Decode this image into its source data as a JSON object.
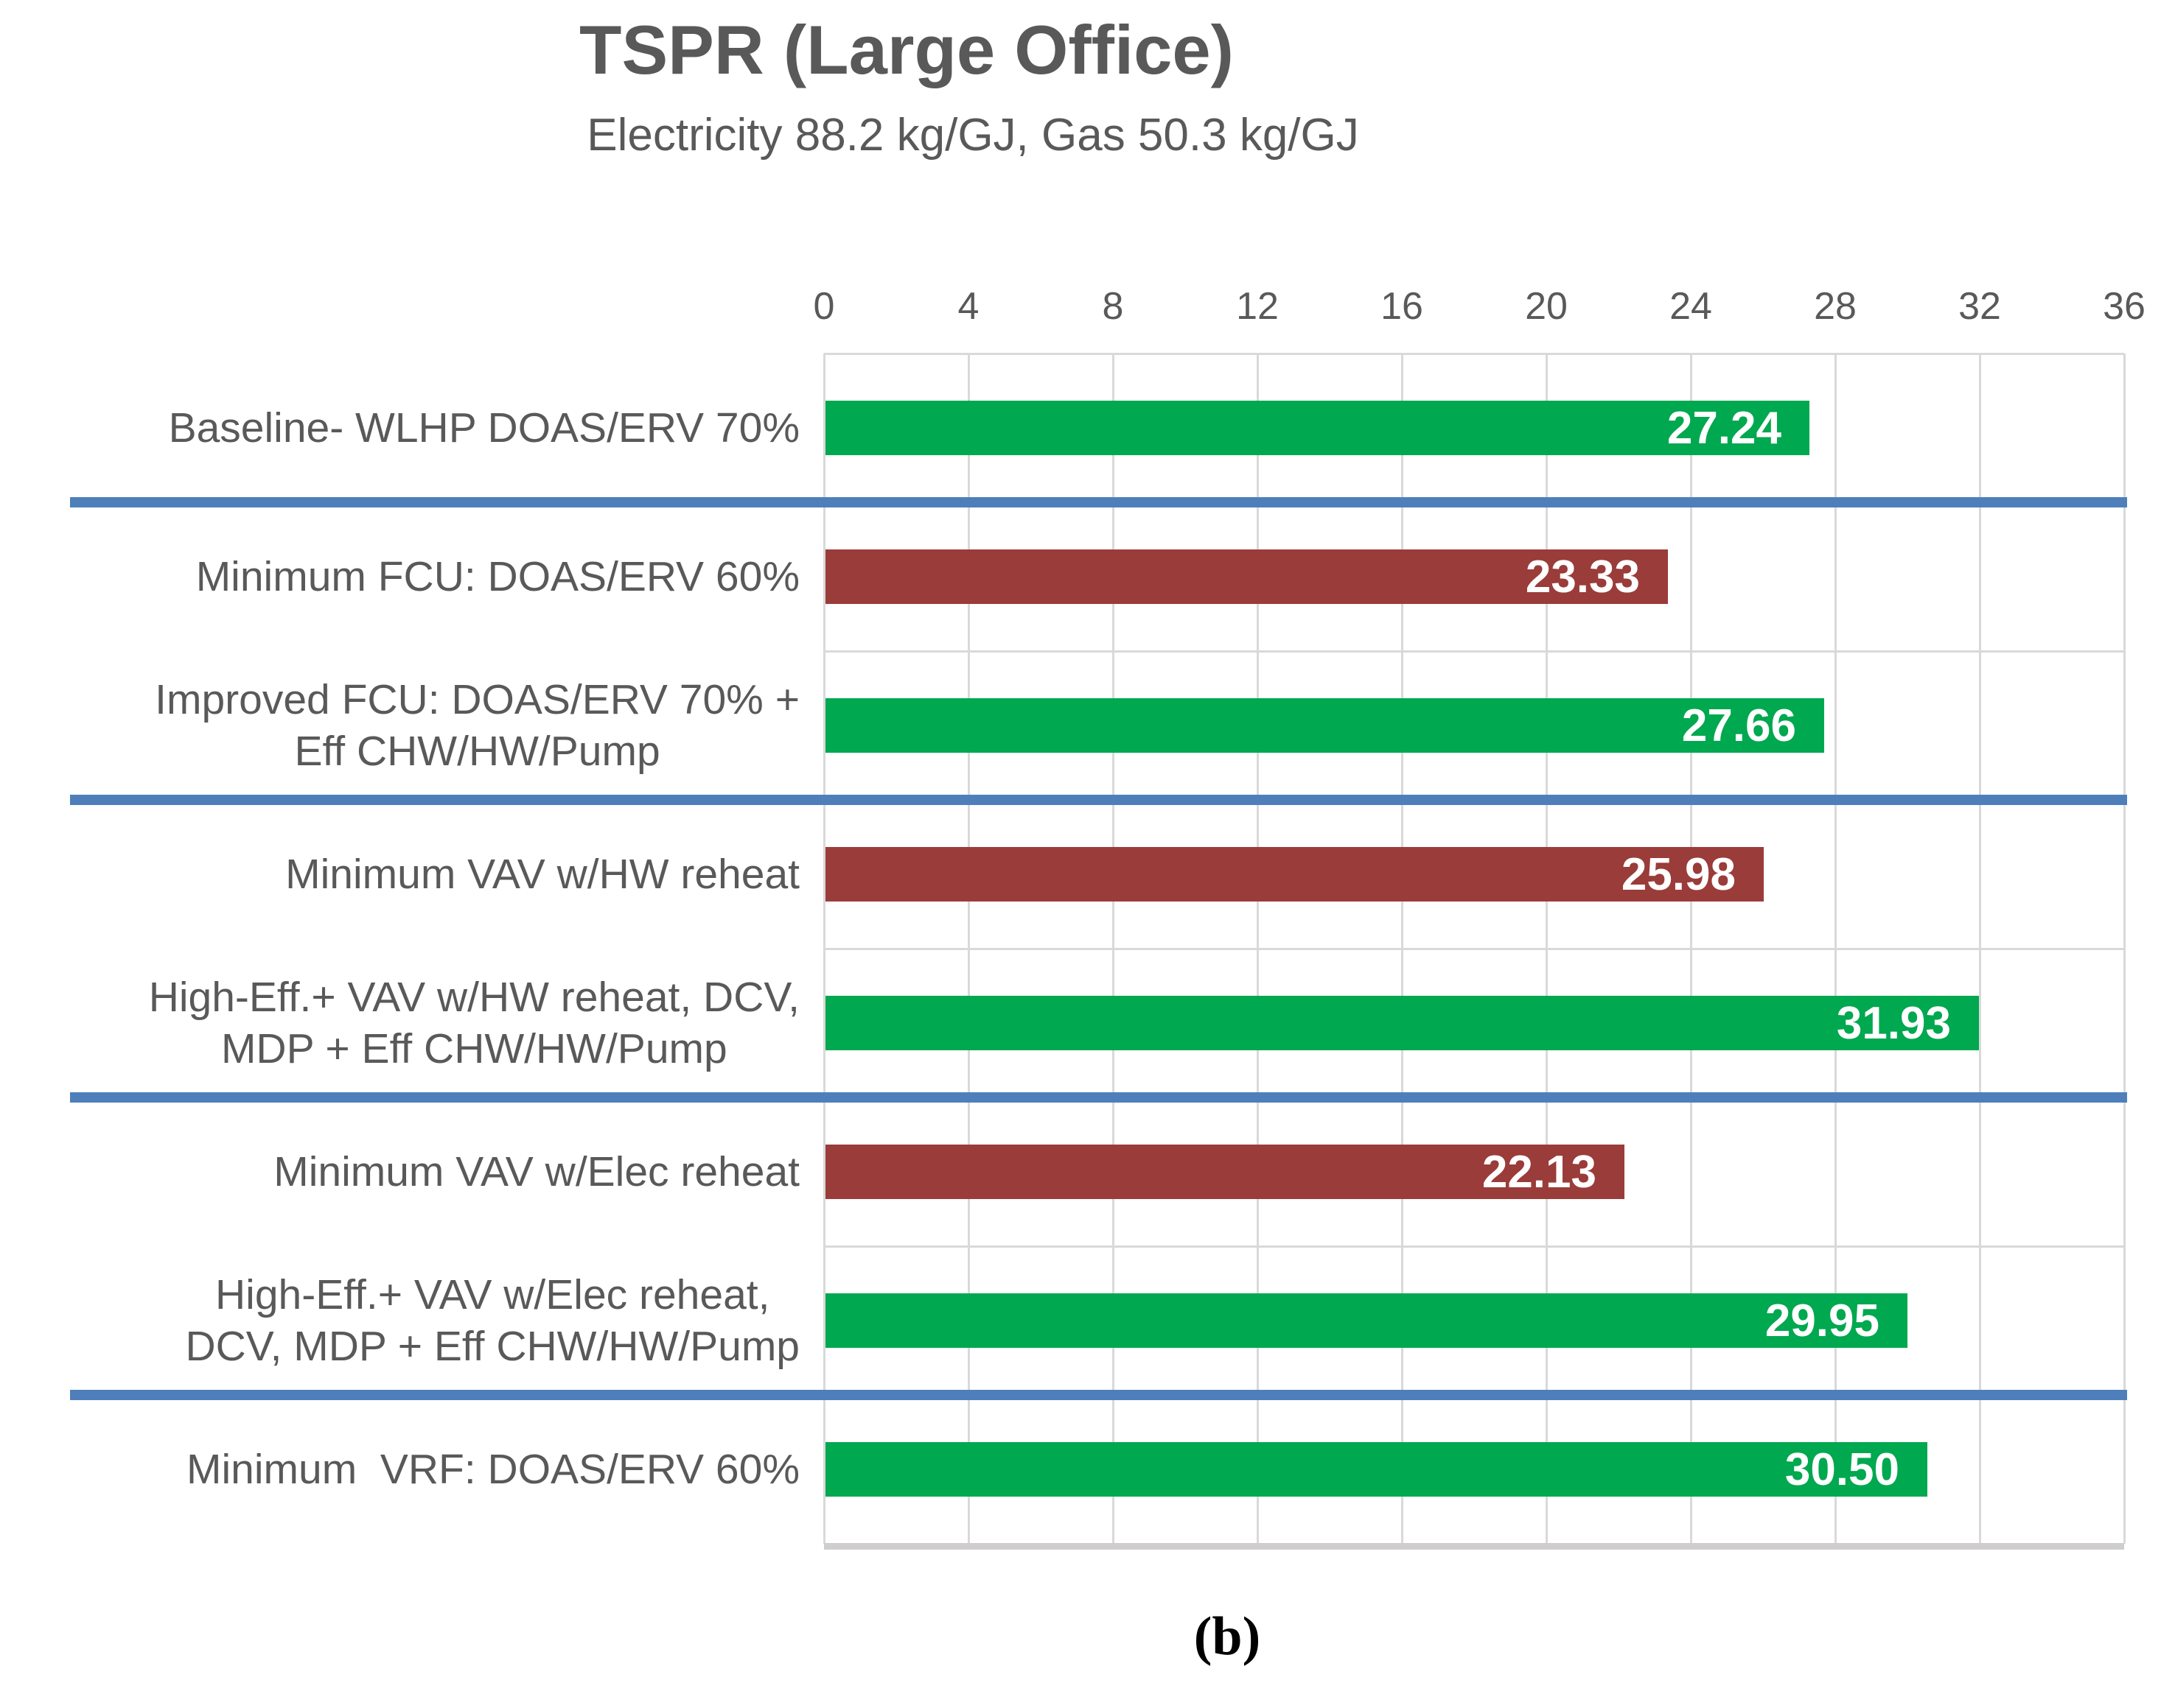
{
  "figure": {
    "caption": "(b)"
  },
  "chart_data": {
    "type": "bar",
    "orientation": "horizontal",
    "title": "TSPR (Large Office)",
    "subtitle": "Electricity 88.2 kg/GJ, Gas 50.3 kg/GJ",
    "xlabel": "",
    "ylabel": "",
    "x_axis": {
      "position": "top",
      "min": 0,
      "max": 36,
      "tick_interval": 4,
      "ticks": [
        "0",
        "4",
        "8",
        "12",
        "16",
        "20",
        "24",
        "28",
        "32",
        "36"
      ]
    },
    "grid": true,
    "legend": "none",
    "categories": [
      "Baseline- WLHP DOAS/ERV 70%",
      "Minimum FCU: DOAS/ERV 60%",
      "Improved FCU: DOAS/ERV 70% +\nEff CHW/HW/Pump",
      "Minimum VAV w/HW reheat",
      "High-Eff.+ VAV w/HW reheat, DCV,\nMDP + Eff CHW/HW/Pump",
      "Minimum VAV w/Elec reheat",
      "High-Eff.+ VAV w/Elec reheat,\nDCV, MDP + Eff CHW/HW/Pump",
      "Minimum  VRF: DOAS/ERV 60%"
    ],
    "values": [
      27.24,
      23.33,
      27.66,
      25.98,
      31.93,
      22.13,
      29.95,
      30.5
    ],
    "value_labels": [
      "27.24",
      "23.33",
      "27.66",
      "25.98",
      "31.93",
      "22.13",
      "29.95",
      "30.50"
    ],
    "bar_color_keys": [
      "green",
      "red",
      "green",
      "red",
      "green",
      "red",
      "green",
      "green"
    ],
    "separator_after_rows": [
      1,
      3,
      5,
      7
    ],
    "colors": {
      "green": "#00A84F",
      "red": "#9A3C39",
      "separator_blue": "#4E7FBA",
      "text_gray": "#595959",
      "gridline": "#D9D9D9",
      "axis_bottom": "#CFCDCD",
      "value_text": "#FFFFFF"
    }
  }
}
